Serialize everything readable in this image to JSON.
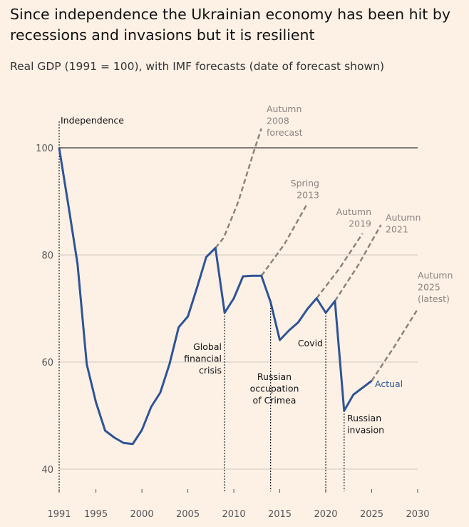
{
  "title": "Since independence the Ukrainian economy has been hit by recessions and invasions but it is resilient",
  "subtitle": "Real GDP (1991 = 100), with IMF forecasts (date of forecast shown)",
  "colors": {
    "background": "#fdf1e6",
    "actual": "#2e5496",
    "forecast": "#8a837e"
  },
  "chart_data": {
    "type": "line",
    "xlim": [
      1991,
      2030
    ],
    "ylim": [
      37,
      110
    ],
    "x_ticks": [
      1991,
      1995,
      2000,
      2005,
      2010,
      2015,
      2020,
      2025,
      2030
    ],
    "y_ticks": [
      40,
      60,
      80,
      100
    ],
    "grid": true,
    "series": [
      {
        "name": "Actual",
        "style": "solid",
        "x": [
          1991,
          1992,
          1993,
          1994,
          1995,
          1996,
          1997,
          1998,
          1999,
          2000,
          2001,
          2002,
          2003,
          2004,
          2005,
          2006,
          2007,
          2008,
          2009,
          2010,
          2011,
          2012,
          2013,
          2014,
          2015,
          2016,
          2017,
          2018,
          2019,
          2020,
          2021,
          2022,
          2023,
          2024,
          2025
        ],
        "y": [
          100,
          89.3,
          78.3,
          59.6,
          52.5,
          47.2,
          45.9,
          44.9,
          44.7,
          47.3,
          51.6,
          54.3,
          59.6,
          66.5,
          68.5,
          73.9,
          79.6,
          81.3,
          69.2,
          71.9,
          76.0,
          76.1,
          76.1,
          71.2,
          64.1,
          65.9,
          67.4,
          69.9,
          71.9,
          69.2,
          71.4,
          50.9,
          53.9,
          55.2,
          56.5
        ]
      },
      {
        "name": "Autumn 2008 forecast",
        "style": "dashed",
        "x": [
          2008,
          2008.9,
          2010.5,
          2012.3,
          2013
        ],
        "y": [
          81.3,
          83.2,
          90,
          100,
          103.6
        ]
      },
      {
        "name": "Spring 2013",
        "style": "dashed",
        "x": [
          2013,
          2015.5,
          2017.9
        ],
        "y": [
          76.1,
          82,
          89.3
        ]
      },
      {
        "name": "Autumn 2019",
        "style": "dashed",
        "x": [
          2019,
          2021.5,
          2024
        ],
        "y": [
          71.9,
          77.5,
          84
        ]
      },
      {
        "name": "Autumn 2021",
        "style": "dashed",
        "x": [
          2021,
          2023.5,
          2026
        ],
        "y": [
          71.4,
          78,
          85.6
        ]
      },
      {
        "name": "Autumn 2025 (latest)",
        "style": "dashed",
        "x": [
          2025,
          2027.5,
          2030
        ],
        "y": [
          56.5,
          63,
          69.9
        ]
      }
    ],
    "annotations": [
      {
        "year": 1991,
        "lines": [
          "Independence"
        ]
      },
      {
        "year": 2009,
        "lines": [
          "Global",
          "financial",
          "crisis"
        ]
      },
      {
        "year": 2014,
        "lines": [
          "Russian",
          "occupation",
          "of Crimea"
        ]
      },
      {
        "year": 2020,
        "lines": [
          "Covid"
        ]
      },
      {
        "year": 2022,
        "lines": [
          "Russian",
          "invasion"
        ]
      }
    ],
    "forecast_labels": [
      [
        "Autumn",
        "2008",
        "forecast"
      ],
      [
        "Spring",
        "2013"
      ],
      [
        "Autumn",
        "2019"
      ],
      [
        "Autumn",
        "2021"
      ],
      [
        "Autumn",
        "2025",
        "(latest)"
      ]
    ],
    "actual_label": "Actual"
  }
}
